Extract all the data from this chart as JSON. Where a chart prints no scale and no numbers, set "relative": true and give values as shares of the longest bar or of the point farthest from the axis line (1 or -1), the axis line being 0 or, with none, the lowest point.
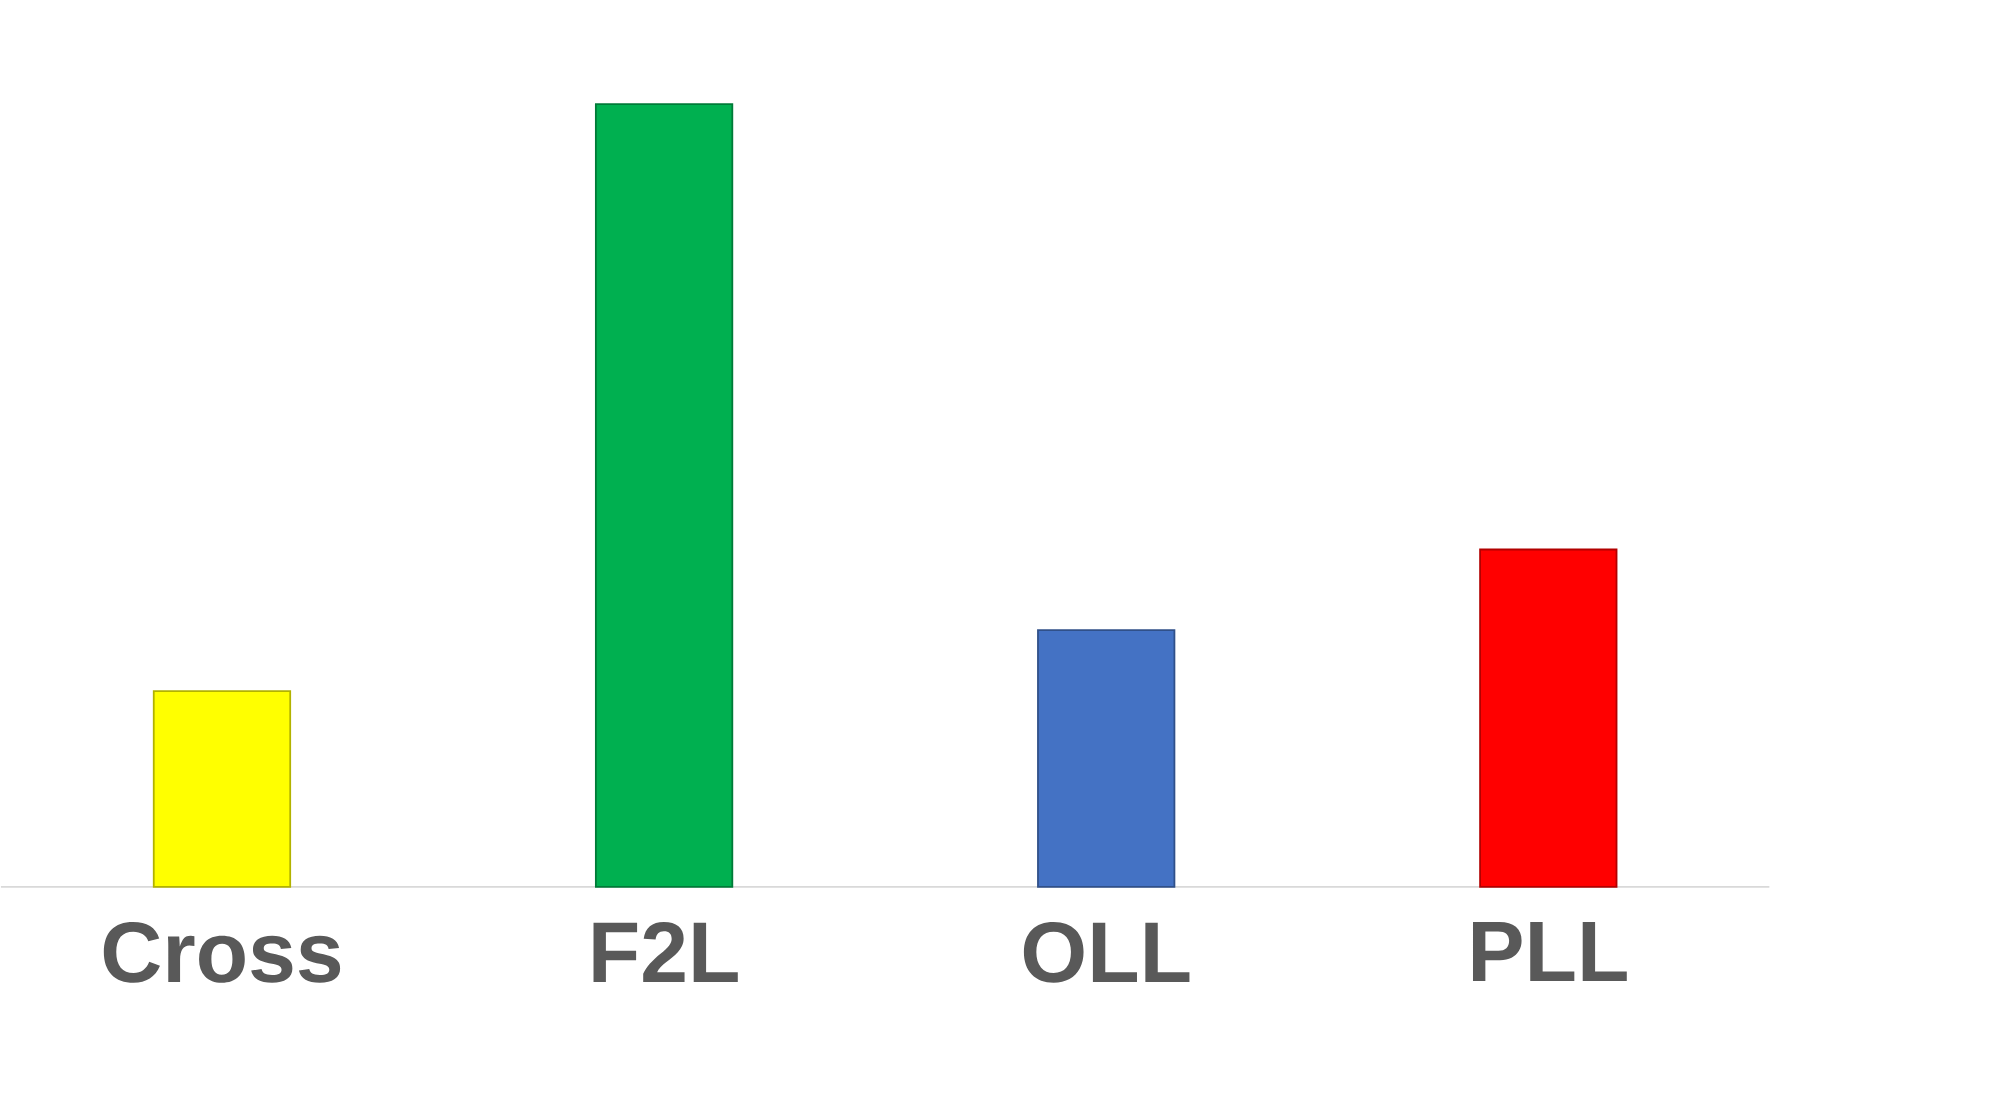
{
  "chart_data": {
    "type": "bar",
    "relative": true,
    "categories": [
      "Cross",
      "F2L",
      "OLL",
      "PLL"
    ],
    "values": [
      0.25,
      1,
      0.328,
      0.431
    ],
    "colors": [
      "#ffff00",
      "#00b050",
      "#4472c4",
      "#ff0000"
    ]
  }
}
